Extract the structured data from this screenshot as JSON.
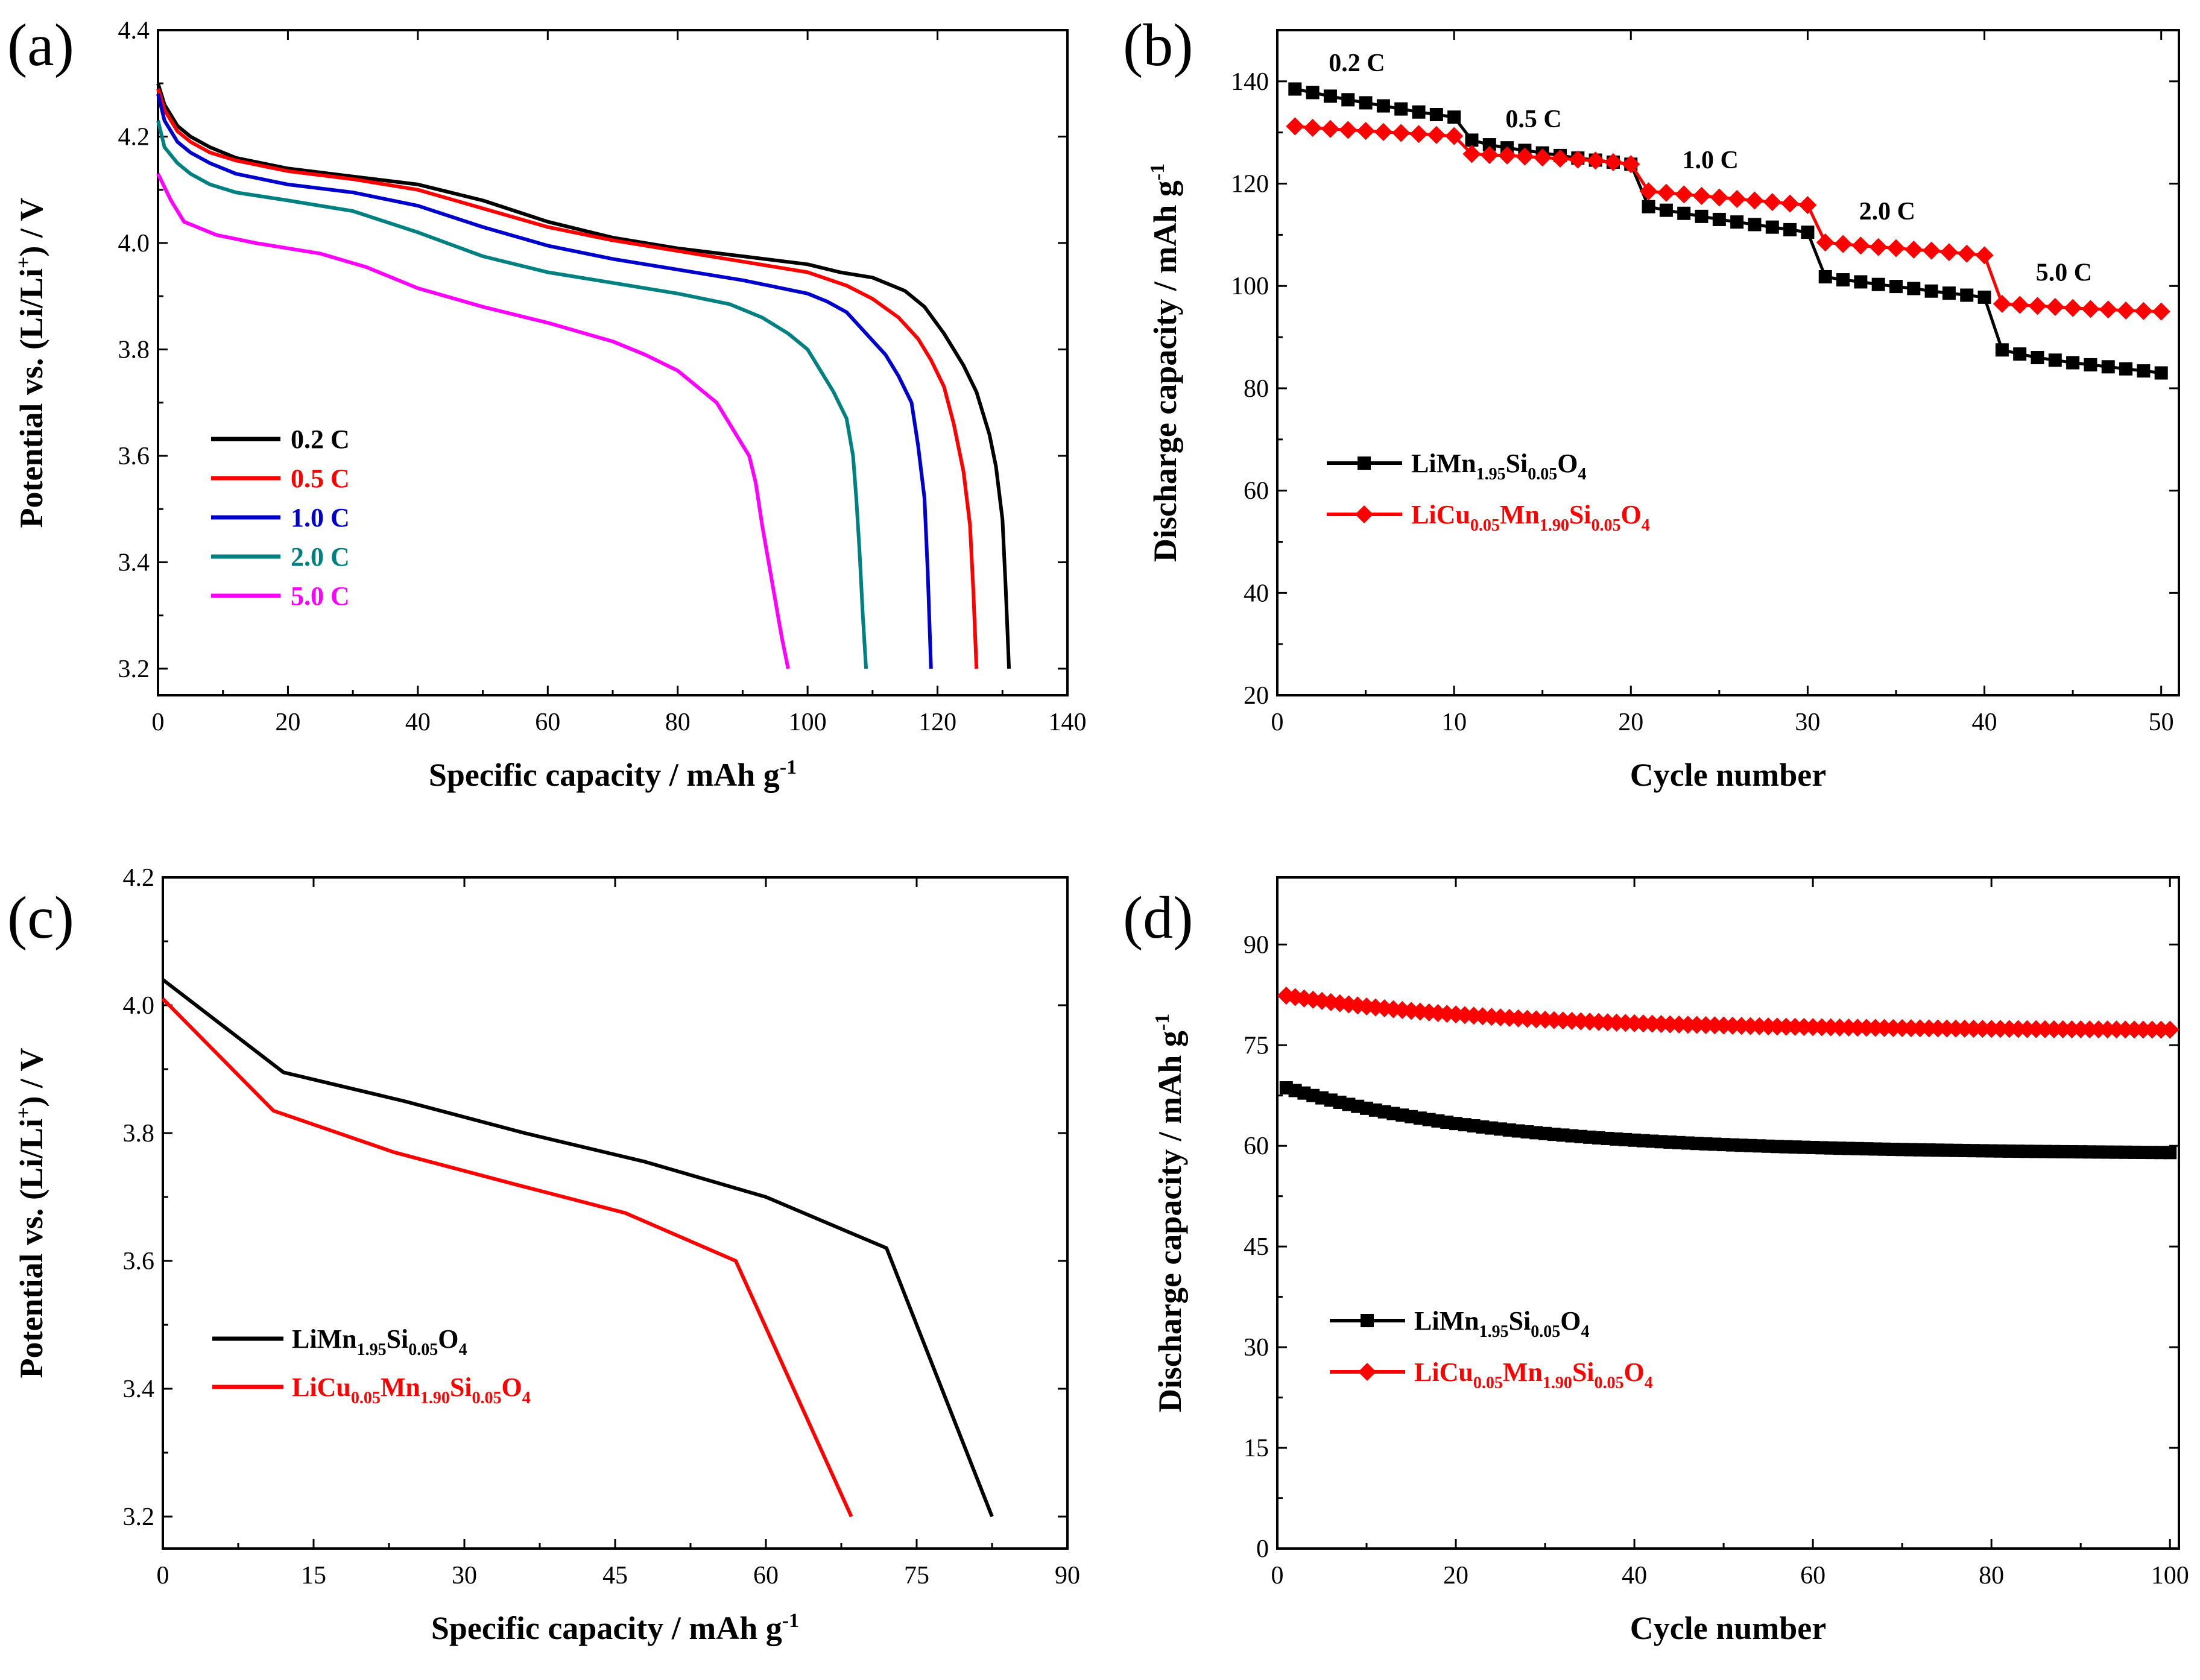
{
  "figure": {
    "panels": [
      "(a)",
      "(b)",
      "(c)",
      "(d)"
    ]
  },
  "chart_data": [
    {
      "id": "a",
      "type": "line",
      "panel_label": "(a)",
      "xlabel": "Specific capacity / mAh g",
      "xlabel_sup": "-1",
      "ylabel_pre": "Potential vs. (Li/Li",
      "ylabel_sup": "+",
      "ylabel_post": ") / V",
      "xlim": [
        0,
        140
      ],
      "ylim": [
        3.15,
        4.4
      ],
      "xticks": [
        0,
        20,
        40,
        60,
        80,
        100,
        120,
        140
      ],
      "yticks": [
        3.2,
        3.4,
        3.6,
        3.8,
        4.0,
        4.2,
        4.4
      ],
      "ytick_decimals": 1,
      "legend_position": "lower-left",
      "series": [
        {
          "name": "0.2 C",
          "color": "#000000",
          "x": [
            0,
            1,
            3,
            5,
            8,
            12,
            20,
            30,
            40,
            50,
            60,
            70,
            80,
            90,
            100,
            105,
            110,
            115,
            118,
            121,
            124,
            126,
            128,
            129,
            130,
            130.5,
            131
          ],
          "y": [
            4.3,
            4.26,
            4.22,
            4.2,
            4.18,
            4.16,
            4.14,
            4.125,
            4.11,
            4.08,
            4.04,
            4.01,
            3.99,
            3.975,
            3.96,
            3.945,
            3.935,
            3.91,
            3.88,
            3.83,
            3.77,
            3.72,
            3.64,
            3.58,
            3.48,
            3.35,
            3.2
          ]
        },
        {
          "name": "0.5 C",
          "color": "#ff0000",
          "x": [
            0,
            1,
            3,
            5,
            8,
            12,
            20,
            30,
            40,
            50,
            60,
            70,
            80,
            90,
            100,
            106,
            110,
            114,
            117,
            119,
            121,
            122.5,
            124,
            125,
            125.5,
            126
          ],
          "y": [
            4.29,
            4.25,
            4.21,
            4.19,
            4.17,
            4.155,
            4.135,
            4.12,
            4.1,
            4.065,
            4.03,
            4.005,
            3.985,
            3.965,
            3.945,
            3.92,
            3.895,
            3.86,
            3.82,
            3.78,
            3.73,
            3.66,
            3.57,
            3.47,
            3.35,
            3.2
          ]
        },
        {
          "name": "1.0 C",
          "color": "#0000cc",
          "x": [
            0,
            1,
            3,
            5,
            8,
            12,
            20,
            30,
            40,
            50,
            60,
            70,
            80,
            90,
            100,
            103,
            106,
            109,
            112,
            114,
            116,
            117,
            118,
            118.5,
            119
          ],
          "y": [
            4.28,
            4.23,
            4.19,
            4.17,
            4.15,
            4.13,
            4.11,
            4.095,
            4.07,
            4.03,
            3.995,
            3.97,
            3.95,
            3.93,
            3.905,
            3.89,
            3.87,
            3.83,
            3.79,
            3.75,
            3.7,
            3.62,
            3.52,
            3.38,
            3.2
          ]
        },
        {
          "name": "2.0 C",
          "color": "#008080",
          "x": [
            0,
            1,
            3,
            5,
            8,
            12,
            20,
            30,
            40,
            50,
            60,
            70,
            80,
            88,
            93,
            97,
            100,
            102,
            104,
            106,
            107,
            107.5,
            108,
            108.5,
            109
          ],
          "y": [
            4.23,
            4.18,
            4.15,
            4.13,
            4.11,
            4.095,
            4.08,
            4.06,
            4.02,
            3.975,
            3.945,
            3.925,
            3.905,
            3.885,
            3.86,
            3.83,
            3.8,
            3.76,
            3.72,
            3.67,
            3.6,
            3.52,
            3.42,
            3.3,
            3.2
          ]
        },
        {
          "name": "5.0 C",
          "color": "#ff00ff",
          "x": [
            0,
            2,
            4,
            6,
            9,
            15,
            20,
            25,
            32,
            40,
            50,
            60,
            70,
            75,
            80,
            83,
            86,
            88,
            90,
            91,
            92,
            93,
            94,
            95,
            96,
            97
          ],
          "y": [
            4.13,
            4.08,
            4.04,
            4.03,
            4.015,
            4.0,
            3.99,
            3.98,
            3.955,
            3.915,
            3.88,
            3.85,
            3.815,
            3.79,
            3.76,
            3.73,
            3.7,
            3.66,
            3.62,
            3.6,
            3.55,
            3.47,
            3.4,
            3.33,
            3.26,
            3.2
          ]
        }
      ]
    },
    {
      "id": "b",
      "type": "line",
      "panel_label": "(b)",
      "xlabel": "Cycle number",
      "ylabel": "Discharge capacity / mAh g",
      "ylabel_sup": "-1",
      "xlim": [
        0,
        51
      ],
      "ylim": [
        20,
        150
      ],
      "xticks": [
        0,
        10,
        20,
        30,
        40,
        50
      ],
      "yticks": [
        20,
        40,
        60,
        80,
        100,
        120,
        140
      ],
      "ytick_decimals": 0,
      "legend_position": "center-left",
      "annotations": [
        {
          "text": "0.2 C",
          "x": 4.5,
          "y": 142
        },
        {
          "text": "0.5 C",
          "x": 14.5,
          "y": 131
        },
        {
          "text": "1.0 C",
          "x": 24.5,
          "y": 123
        },
        {
          "text": "2.0 C",
          "x": 34.5,
          "y": 113
        },
        {
          "text": "5.0 C",
          "x": 44.5,
          "y": 101
        }
      ],
      "series": [
        {
          "name": "LiMn",
          "sub1": "1.95",
          "mid": "Si",
          "sub2": "0.05",
          "end": "O",
          "sub3": "4",
          "color": "#000000",
          "marker": "square",
          "x": [
            1,
            2,
            3,
            4,
            5,
            6,
            7,
            8,
            9,
            10,
            11,
            12,
            13,
            14,
            15,
            16,
            17,
            18,
            19,
            20,
            21,
            22,
            23,
            24,
            25,
            26,
            27,
            28,
            29,
            30,
            31,
            32,
            33,
            34,
            35,
            36,
            37,
            38,
            39,
            40,
            41,
            42,
            43,
            44,
            45,
            46,
            47,
            48,
            49,
            50
          ],
          "y": [
            138.5,
            137.8,
            137.1,
            136.4,
            135.8,
            135.2,
            134.6,
            134.0,
            133.5,
            133.0,
            128.5,
            127.6,
            127.0,
            126.5,
            126.0,
            125.5,
            125.0,
            124.6,
            124.2,
            123.8,
            115.5,
            114.8,
            114.2,
            113.6,
            113.0,
            112.5,
            112.0,
            111.5,
            111.0,
            110.5,
            101.8,
            101.2,
            100.8,
            100.3,
            99.9,
            99.5,
            99.0,
            98.6,
            98.2,
            97.8,
            87.5,
            86.7,
            86.0,
            85.5,
            85.0,
            84.6,
            84.2,
            83.8,
            83.4,
            83.0
          ]
        },
        {
          "name": "LiCu",
          "sub1": "0.05",
          "mid": "Mn",
          "sub2": "1.90",
          "mid2": "Si",
          "sub2b": "0.05",
          "end": "O",
          "sub3": "4",
          "color": "#ff0000",
          "marker": "diamond",
          "x": [
            1,
            2,
            3,
            4,
            5,
            6,
            7,
            8,
            9,
            10,
            11,
            12,
            13,
            14,
            15,
            16,
            17,
            18,
            19,
            20,
            21,
            22,
            23,
            24,
            25,
            26,
            27,
            28,
            29,
            30,
            31,
            32,
            33,
            34,
            35,
            36,
            37,
            38,
            39,
            40,
            41,
            42,
            43,
            44,
            45,
            46,
            47,
            48,
            49,
            50
          ],
          "y": [
            131.2,
            130.9,
            130.7,
            130.5,
            130.3,
            130.1,
            129.9,
            129.7,
            129.5,
            129.3,
            125.8,
            125.6,
            125.5,
            125.3,
            125.1,
            124.9,
            124.7,
            124.5,
            124.2,
            123.8,
            118.5,
            118.2,
            117.9,
            117.6,
            117.3,
            117.0,
            116.7,
            116.4,
            116.1,
            115.8,
            108.5,
            108.2,
            107.9,
            107.6,
            107.4,
            107.1,
            106.9,
            106.6,
            106.3,
            106.0,
            96.5,
            96.3,
            96.1,
            95.9,
            95.7,
            95.5,
            95.4,
            95.2,
            95.1,
            95.0
          ]
        }
      ]
    },
    {
      "id": "c",
      "type": "line",
      "panel_label": "(c)",
      "xlabel": "Specific capacity / mAh g",
      "xlabel_sup": "-1",
      "ylabel_pre": "Potential vs. (Li/Li",
      "ylabel_sup": "+",
      "ylabel_post": ") / V",
      "xlim": [
        0,
        90
      ],
      "ylim": [
        3.15,
        4.2
      ],
      "xticks": [
        0,
        15,
        30,
        45,
        60,
        75,
        90
      ],
      "yticks": [
        3.2,
        3.4,
        3.6,
        3.8,
        4.0,
        4.2
      ],
      "ytick_decimals": 1,
      "legend_position": "lower-left",
      "series": [
        {
          "name": "LiMn",
          "sub1": "1.95",
          "mid": "Si",
          "sub2": "0.05",
          "end": "O",
          "sub3": "4",
          "color": "#000000",
          "x": [
            0,
            12,
            24,
            36,
            48,
            60,
            72,
            82.5
          ],
          "y": [
            4.04,
            3.895,
            3.85,
            3.8,
            3.755,
            3.7,
            3.62,
            3.2
          ]
        },
        {
          "name": "LiCu",
          "sub1": "0.05",
          "mid": "Mn",
          "sub2": "1.90",
          "mid2": "Si",
          "sub2b": "0.05",
          "end": "O",
          "sub3": "4",
          "color": "#ff0000",
          "x": [
            0,
            11,
            23,
            35,
            46,
            57,
            68.5
          ],
          "y": [
            4.01,
            3.835,
            3.77,
            3.72,
            3.675,
            3.6,
            3.2
          ]
        }
      ]
    },
    {
      "id": "d",
      "type": "line",
      "panel_label": "(d)",
      "xlabel": "Cycle number",
      "ylabel": "Discharge capacity / mAh g",
      "ylabel_sup": "-1",
      "xlim": [
        0,
        101
      ],
      "ylim": [
        0,
        100
      ],
      "xticks": [
        0,
        20,
        40,
        60,
        80,
        100
      ],
      "yticks": [
        0,
        15,
        30,
        45,
        60,
        75,
        90
      ],
      "ytick_decimals": 0,
      "legend_position": "center-left",
      "series": [
        {
          "name": "LiMn",
          "sub1": "1.95",
          "mid": "Si",
          "sub2": "0.05",
          "end": "O",
          "sub3": "4",
          "color": "#000000",
          "marker": "square",
          "start": 68.5,
          "end_value": 59.0,
          "count": 100
        },
        {
          "name": "LiCu",
          "sub1": "0.05",
          "mid": "Mn",
          "sub2": "1.90",
          "mid2": "Si",
          "sub2b": "0.05",
          "end": "O",
          "sub3": "4",
          "color": "#ff0000",
          "marker": "diamond",
          "start": 82.3,
          "end_value": 77.3,
          "count": 100
        }
      ]
    }
  ]
}
